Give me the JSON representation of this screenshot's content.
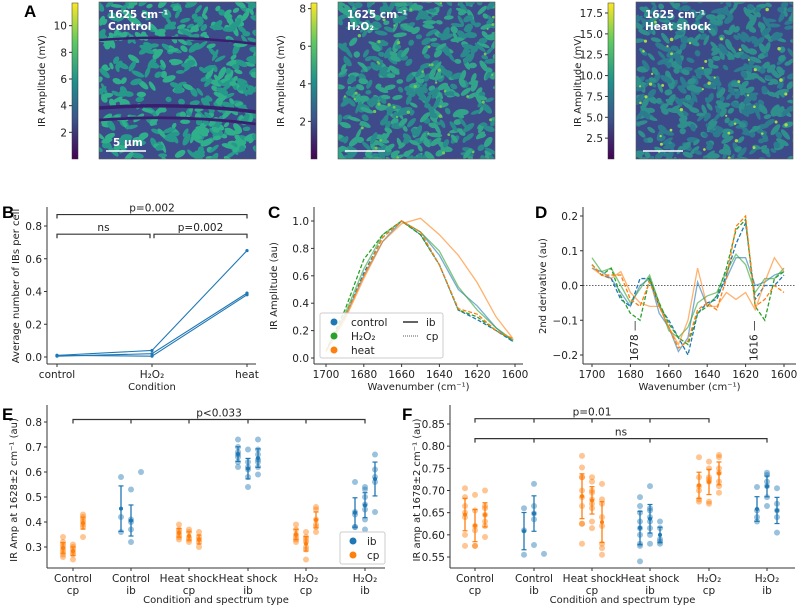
{
  "panel_a": {
    "label": "A",
    "colorbar_label": "IR Amplitude (mV)",
    "images": [
      {
        "wavenumber": "1625 cm⁻¹",
        "condition": "Control",
        "colorbar_ticks": [
          "2",
          "4",
          "6",
          "8",
          "10"
        ],
        "colorbar_range": [
          0,
          11.7
        ],
        "scalebar": "5 µm"
      },
      {
        "wavenumber": "1625 cm⁻¹",
        "condition": "H₂O₂",
        "colorbar_ticks": [
          "2",
          "4",
          "6",
          "8"
        ],
        "colorbar_range": [
          0,
          8.3
        ]
      },
      {
        "wavenumber": "1625 cm⁻¹",
        "condition": "Heat shock",
        "colorbar_ticks": [
          "2.5",
          "5.0",
          "7.5",
          "10.0",
          "12.5",
          "15.0",
          "17.5"
        ],
        "colorbar_range": [
          0,
          18.7
        ]
      }
    ],
    "colormap": [
      "#440154",
      "#3b528b",
      "#21918c",
      "#5ec962",
      "#fde725"
    ]
  },
  "colors": {
    "control": "#1f77b4",
    "H2O2": "#2ca02c",
    "heat": "#ff7f0e",
    "ib": "#1f77b4",
    "cp": "#ff7f0e"
  },
  "chart_data": [
    {
      "panel": "B",
      "type": "line",
      "xlabel": "Condition",
      "ylabel": "Average number of IBs per cell",
      "categories": [
        "control",
        "H₂O₂",
        "heat"
      ],
      "yticks": [
        "0.0",
        "0.2",
        "0.4",
        "0.6",
        "0.8"
      ],
      "ylim": [
        -0.03,
        0.92
      ],
      "series": [
        {
          "values": [
            0.01,
            0.04,
            0.65
          ]
        },
        {
          "values": [
            0.005,
            0.02,
            0.39
          ]
        },
        {
          "values": [
            0.01,
            0.005,
            0.38
          ]
        }
      ],
      "annotations": [
        {
          "text": "p=0.002",
          "from": 0,
          "to": 2,
          "y": 0.87
        },
        {
          "text": "ns",
          "from": 0,
          "to": 1,
          "y": 0.75
        },
        {
          "text": "p=0.002",
          "from": 1,
          "to": 2,
          "y": 0.75
        }
      ]
    },
    {
      "panel": "C",
      "type": "line",
      "xlabel": "Wavenumber (cm⁻¹)",
      "ylabel": "IR Amplitude (au)",
      "xlim": [
        1702,
        1597
      ],
      "ylim": [
        -0.03,
        1.1
      ],
      "xticks": [
        "1700",
        "1680",
        "1660",
        "1640",
        "1620",
        "1600"
      ],
      "yticks": [
        "0.0",
        "0.2",
        "0.4",
        "0.6",
        "0.8",
        "1.0"
      ],
      "x": [
        1700,
        1690,
        1680,
        1670,
        1660,
        1650,
        1640,
        1630,
        1620,
        1610,
        1601
      ],
      "series": [
        {
          "condition": "control",
          "type": "ib",
          "values": [
            0.05,
            0.3,
            0.6,
            0.85,
            1.0,
            0.92,
            0.75,
            0.5,
            0.38,
            0.22,
            0.12
          ]
        },
        {
          "condition": "control",
          "type": "cp",
          "values": [
            0.05,
            0.3,
            0.62,
            0.88,
            1.0,
            0.9,
            0.68,
            0.35,
            0.28,
            0.2,
            0.12
          ]
        },
        {
          "condition": "H2O2",
          "type": "ib",
          "values": [
            0.05,
            0.32,
            0.65,
            0.9,
            1.0,
            0.92,
            0.78,
            0.52,
            0.35,
            0.22,
            0.13
          ]
        },
        {
          "condition": "H2O2",
          "type": "cp",
          "values": [
            0.05,
            0.35,
            0.72,
            0.9,
            1.0,
            0.9,
            0.68,
            0.35,
            0.3,
            0.2,
            0.13
          ]
        },
        {
          "condition": "heat",
          "type": "ib",
          "values": [
            0.05,
            0.28,
            0.58,
            0.85,
            0.98,
            1.02,
            0.9,
            0.75,
            0.55,
            0.3,
            0.14
          ]
        },
        {
          "condition": "heat",
          "type": "cp",
          "values": [
            0.05,
            0.3,
            0.6,
            0.88,
            1.0,
            0.92,
            0.68,
            0.36,
            0.32,
            0.2,
            0.14
          ]
        }
      ],
      "legend": {
        "position": "lower-left",
        "conditions": [
          "control",
          "H₂O₂",
          "heat"
        ],
        "types": [
          "ib",
          "cp"
        ]
      }
    },
    {
      "panel": "D",
      "type": "line",
      "xlabel": "Wavenumber (cm⁻¹)",
      "ylabel": "2nd derivative (au)",
      "xlim": [
        1703,
        1597
      ],
      "ylim": [
        -0.225,
        0.225
      ],
      "xticks": [
        "1700",
        "1680",
        "1660",
        "1640",
        "1620",
        "1600"
      ],
      "yticks": [
        "−0.2",
        "−0.1",
        "0.0",
        "0.1",
        "0.2"
      ],
      "x": [
        1700,
        1695,
        1690,
        1685,
        1680,
        1675,
        1670,
        1665,
        1660,
        1655,
        1650,
        1645,
        1640,
        1635,
        1630,
        1625,
        1620,
        1615,
        1610,
        1605,
        1600
      ],
      "series": [
        {
          "condition": "control",
          "type": "ib",
          "values": [
            0.05,
            0.04,
            0.02,
            -0.02,
            -0.06,
            0.0,
            0.02,
            -0.08,
            -0.12,
            -0.19,
            -0.15,
            0.01,
            -0.06,
            -0.03,
            0.02,
            0.08,
            0.08,
            0.0,
            0.01,
            0.03,
            0.04
          ]
        },
        {
          "condition": "control",
          "type": "cp",
          "values": [
            0.06,
            0.03,
            0.02,
            -0.04,
            -0.06,
            0.02,
            0.02,
            -0.06,
            -0.1,
            -0.15,
            -0.2,
            -0.08,
            -0.05,
            -0.04,
            0.03,
            0.12,
            0.18,
            -0.04,
            0.0,
            0.0,
            0.03
          ]
        },
        {
          "condition": "H2O2",
          "type": "ib",
          "values": [
            0.08,
            0.04,
            0.05,
            0.0,
            -0.05,
            -0.01,
            0.03,
            -0.05,
            -0.13,
            -0.15,
            -0.12,
            -0.05,
            -0.03,
            -0.02,
            0.04,
            0.09,
            0.06,
            -0.02,
            0.02,
            0.02,
            0.05
          ]
        },
        {
          "condition": "H2O2",
          "type": "cp",
          "values": [
            0.06,
            0.03,
            0.05,
            -0.03,
            -0.08,
            -0.1,
            0.02,
            -0.05,
            -0.11,
            -0.15,
            -0.17,
            -0.08,
            -0.06,
            -0.03,
            0.05,
            0.16,
            0.19,
            -0.06,
            -0.1,
            0.02,
            0.04
          ]
        },
        {
          "condition": "heat",
          "type": "ib",
          "values": [
            0.05,
            0.03,
            0.02,
            0.04,
            -0.02,
            -0.05,
            -0.06,
            -0.06,
            -0.12,
            -0.17,
            -0.1,
            0.05,
            -0.06,
            -0.06,
            -0.02,
            -0.04,
            -0.02,
            -0.07,
            0.01,
            0.08,
            0.04
          ]
        },
        {
          "condition": "heat",
          "type": "cp",
          "values": [
            0.06,
            0.03,
            0.03,
            0.03,
            -0.04,
            -0.06,
            0.01,
            -0.06,
            -0.12,
            -0.18,
            -0.16,
            -0.07,
            -0.05,
            -0.07,
            0.02,
            0.17,
            0.2,
            -0.06,
            -0.04,
            0.0,
            -0.02
          ]
        }
      ],
      "reference_line": 0.0,
      "annotations": [
        {
          "text": "1678 —",
          "x": 1678
        },
        {
          "text": "1616 —",
          "x": 1616
        }
      ]
    },
    {
      "panel": "E",
      "type": "scatter",
      "xlabel": "Condition and spectrum type",
      "ylabel": "IR Amp at 1628±2 cm⁻¹ (au)",
      "ylim": [
        0.23,
        0.82
      ],
      "yticks": [
        "0.3",
        "0.4",
        "0.5",
        "0.6",
        "0.7",
        "0.8"
      ],
      "categories": [
        {
          "condition": "Control",
          "type": "cp",
          "replicates": [
            [
              0.34,
              0.32,
              0.31,
              0.3,
              0.29,
              0.28,
              0.27,
              0.26
            ],
            [
              0.31,
              0.3,
              0.29,
              0.28,
              0.27,
              0.25
            ],
            [
              0.43,
              0.42,
              0.41,
              0.4,
              0.39,
              0.38,
              0.34
            ]
          ]
        },
        {
          "condition": "Control",
          "type": "ib",
          "replicates": [
            [
              0.58,
              0.42,
              0.36
            ],
            [
              0.53,
              0.41,
              0.4,
              0.37,
              0.32
            ],
            [
              0.6
            ]
          ]
        },
        {
          "condition": "Heat shock",
          "type": "cp",
          "replicates": [
            [
              0.39,
              0.37,
              0.36,
              0.35,
              0.34,
              0.33
            ],
            [
              0.37,
              0.36,
              0.34,
              0.33,
              0.32
            ],
            [
              0.36,
              0.34,
              0.33,
              0.32,
              0.3
            ]
          ]
        },
        {
          "condition": "Heat shock",
          "type": "ib",
          "replicates": [
            [
              0.73,
              0.7,
              0.68,
              0.67,
              0.66,
              0.64,
              0.62
            ],
            [
              0.69,
              0.64,
              0.62,
              0.61,
              0.58,
              0.54
            ],
            [
              0.73,
              0.69,
              0.67,
              0.65,
              0.64,
              0.62,
              0.59
            ]
          ]
        },
        {
          "condition": "H₂O₂",
          "type": "cp",
          "replicates": [
            [
              0.39,
              0.37,
              0.35,
              0.34,
              0.33,
              0.32
            ],
            [
              0.36,
              0.34,
              0.33,
              0.32,
              0.3,
              0.29,
              0.25
            ],
            [
              0.46,
              0.45,
              0.41,
              0.39,
              0.38,
              0.36
            ]
          ]
        },
        {
          "condition": "H₂O₂",
          "type": "ib",
          "replicates": [
            [
              0.56,
              0.44,
              0.43,
              0.38,
              0.38
            ],
            [
              0.54,
              0.53,
              0.5,
              0.47,
              0.45,
              0.41,
              0.37
            ],
            [
              0.67,
              0.61,
              0.58,
              0.56,
              0.44
            ]
          ]
        }
      ],
      "annotations": [
        {
          "text": "p<0.033",
          "from": 0,
          "to": 5,
          "y": 0.81
        }
      ],
      "legend": {
        "position": "lower-right",
        "entries": [
          "ib",
          "cp"
        ]
      }
    },
    {
      "panel": "F",
      "type": "scatter",
      "xlabel": "Condition and spectrum type",
      "ylabel": "IR amp at 1678±2 cm⁻¹ (au)",
      "ylim": [
        0.53,
        0.875
      ],
      "yticks": [
        "0.55",
        "0.60",
        "0.65",
        "0.70",
        "0.75",
        "0.80",
        "0.85"
      ],
      "categories": [
        {
          "condition": "Control",
          "type": "cp",
          "replicates": [
            [
              0.705,
              0.685,
              0.665,
              0.65,
              0.64,
              0.6,
              0.575
            ],
            [
              0.69,
              0.655,
              0.62,
              0.61,
              0.575,
              0.575
            ],
            [
              0.7,
              0.665,
              0.66,
              0.645,
              0.63,
              0.62,
              0.595
            ]
          ]
        },
        {
          "condition": "Control",
          "type": "ib",
          "replicates": [
            [
              0.66,
              0.61,
              0.555
            ],
            [
              0.715,
              0.665,
              0.648,
              0.635,
              0.577
            ],
            [
              0.557
            ]
          ]
        },
        {
          "condition": "Heat shock",
          "type": "cp",
          "replicates": [
            [
              0.778,
              0.752,
              0.73,
              0.73,
              0.7,
              0.685,
              0.665,
              0.625,
              0.625,
              0.58
            ],
            [
              0.73,
              0.72,
              0.7,
              0.695,
              0.68,
              0.67,
              0.66,
              0.63,
              0.615
            ],
            [
              0.715,
              0.68,
              0.67,
              0.64,
              0.62,
              0.58,
              0.57,
              0.555
            ]
          ]
        },
        {
          "condition": "Heat shock",
          "type": "ib",
          "replicates": [
            [
              0.685,
              0.665,
              0.65,
              0.63,
              0.615,
              0.6,
              0.58,
              0.575,
              0.54
            ],
            [
              0.71,
              0.66,
              0.655,
              0.64,
              0.63,
              0.615,
              0.6,
              0.58
            ],
            [
              0.63,
              0.615,
              0.59,
              0.585,
              0.58
            ]
          ]
        },
        {
          "condition": "H₂O₂",
          "type": "cp",
          "replicates": [
            [
              0.775,
              0.73,
              0.71,
              0.7,
              0.68,
              0.675
            ],
            [
              0.765,
              0.75,
              0.73,
              0.725,
              0.72,
              0.675,
              0.67
            ],
            [
              0.78,
              0.775,
              0.75,
              0.74,
              0.72,
              0.71,
              0.695
            ]
          ]
        },
        {
          "condition": "H₂O₂",
          "type": "ib",
          "replicates": [
            [
              0.708,
              0.655,
              0.64,
              0.63
            ],
            [
              0.74,
              0.735,
              0.72,
              0.71,
              0.685,
              0.665
            ],
            [
              0.705,
              0.67,
              0.655,
              0.64,
              0.605
            ]
          ]
        }
      ],
      "annotations": [
        {
          "text": "p=0.01",
          "from": 0,
          "to": 4,
          "y": 0.862
        },
        {
          "text": "ns",
          "from": 0,
          "to": 5,
          "y": 0.817
        }
      ]
    }
  ]
}
